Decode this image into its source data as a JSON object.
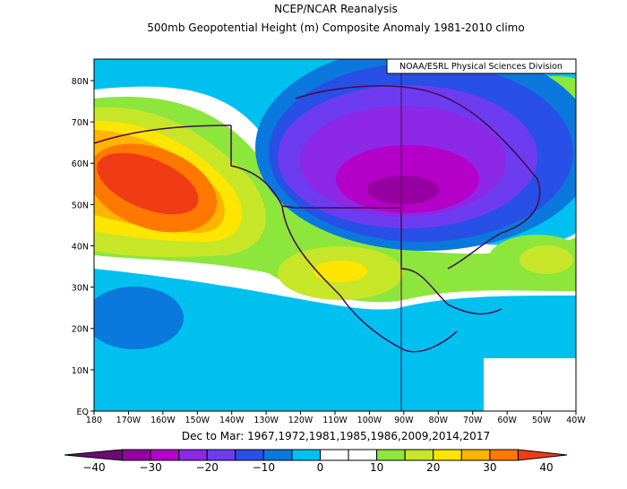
{
  "header": {
    "title": "NCEP/NCAR Reanalysis",
    "subtitle": "500mb Geopotential Height (m) Composite Anomaly 1981-2010 climo"
  },
  "credit": "NOAA/ESRL Physical Sciences Division",
  "map": {
    "lat_range": [
      0,
      85.2
    ],
    "lon_range": [
      -180,
      -40
    ],
    "lat_ticks": [
      {
        "value": 80,
        "label": "80N"
      },
      {
        "value": 70,
        "label": "70N"
      },
      {
        "value": 60,
        "label": "60N"
      },
      {
        "value": 50,
        "label": "50N"
      },
      {
        "value": 40,
        "label": "40N"
      },
      {
        "value": 30,
        "label": "30N"
      },
      {
        "value": 20,
        "label": "20N"
      },
      {
        "value": 10,
        "label": "10N"
      },
      {
        "value": 0,
        "label": "EQ"
      }
    ],
    "lon_ticks": [
      {
        "value": -180,
        "label": "180"
      },
      {
        "value": -170,
        "label": "170W"
      },
      {
        "value": -160,
        "label": "160W"
      },
      {
        "value": -150,
        "label": "150W"
      },
      {
        "value": -140,
        "label": "140W"
      },
      {
        "value": -130,
        "label": "130W"
      },
      {
        "value": -120,
        "label": "120W"
      },
      {
        "value": -110,
        "label": "110W"
      },
      {
        "value": -100,
        "label": "100W"
      },
      {
        "value": -90,
        "label": "90W"
      },
      {
        "value": -80,
        "label": "80W"
      },
      {
        "value": -70,
        "label": "70W"
      },
      {
        "value": -60,
        "label": "60W"
      },
      {
        "value": -50,
        "label": "50W"
      },
      {
        "value": -40,
        "label": "40W"
      }
    ]
  },
  "footer": "Dec to Mar: 1967,1972,1981,1985,1986,2009,2014,2017",
  "colorbar": {
    "range": [
      -40,
      40
    ],
    "step": 5,
    "colors": [
      "#6e0a78",
      "#9600a0",
      "#b400c8",
      "#8c28e6",
      "#6e3cf0",
      "#2850e6",
      "#0a78dc",
      "#00c0f0",
      "#ffffff",
      "#ffffff",
      "#8ce63c",
      "#c8e628",
      "#ffe600",
      "#ffb400",
      "#ff7800",
      "#f03c14"
    ],
    "ticks": [
      {
        "value": -40,
        "label": "−40"
      },
      {
        "value": -30,
        "label": "−30"
      },
      {
        "value": -20,
        "label": "−20"
      },
      {
        "value": -10,
        "label": "−10"
      },
      0,
      10,
      20,
      30,
      40
    ]
  }
}
